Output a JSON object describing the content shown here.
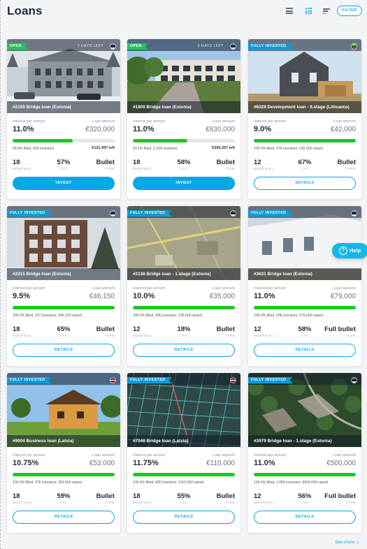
{
  "header": {
    "title": "Loans",
    "filter_label": "FILTER"
  },
  "colors": {
    "accent": "#0aa7e4",
    "progress": "#1cc925",
    "open_badge": "#22c55e",
    "invested_badge": "#0e9ad8"
  },
  "help": {
    "label": "Help",
    "icon_glyph": "?"
  },
  "see_more": {
    "label": "See more",
    "chevron": "›"
  },
  "common": {
    "interest_label": "Interest per annum",
    "amount_label": "Loan amount",
    "term_unit": "MONTH(S)",
    "ltv_unit": "LTV",
    "type_unit": "TYPE"
  },
  "cards": [
    {
      "badge": "OPEN",
      "days_left": "7 DAYS LEFT",
      "flag": "ee",
      "title": "#2155 Bridge loan (Estonia)",
      "interest": "11.0%",
      "amount": "€320,000",
      "filled": 0.589,
      "stats": "58.9% filled, 609 investors",
      "left": "€131,497 left",
      "term": "18",
      "ltv": "57%",
      "type": "Bullet",
      "button": "INVEST",
      "photo": "snow"
    },
    {
      "badge": "OPEN",
      "days_left": "6 DAYS LEFT",
      "flag": "ee",
      "title": "#1800 Bridge loan (Estonia)",
      "interest": "11.0%",
      "amount": "€630,000",
      "filled": 0.531,
      "stats": "53.1% filled, 1,159 investors",
      "left": "€295,267 left",
      "term": "18",
      "ltv": "58%",
      "type": "Bullet",
      "button": "INVEST",
      "photo": "street"
    },
    {
      "badge": "FULLY INVESTED",
      "days_left": "",
      "flag": "lt",
      "title": "#6328 Development loan - 9.stage (Lithuania)",
      "interest": "9.0%",
      "amount": "€42,000",
      "filled": 1.0,
      "stats": "100.0% filled, 375 investors, €42,000 raised",
      "left": "",
      "term": "12",
      "ltv": "67%",
      "type": "Bullet",
      "button": "DETAILS",
      "photo": "modern"
    },
    {
      "badge": "FULLY INVESTED",
      "days_left": "",
      "flag": "ee",
      "title": "#2215 Bridge loan (Estonia)",
      "interest": "9.5%",
      "amount": "€46,150",
      "filled": 1.0,
      "stats": "100.0% filled, 227 investors, €46,150 raised",
      "left": "",
      "term": "18",
      "ltv": "65%",
      "type": "Bullet",
      "button": "DETAILS",
      "photo": "apartment"
    },
    {
      "badge": "FULLY INVESTED",
      "days_left": "",
      "flag": "ee",
      "title": "#2136 Bridge loan - 1.stage (Estonia)",
      "interest": "10.0%",
      "amount": "€35,000",
      "filled": 1.0,
      "stats": "100.0% filled, 496 investors, €35,000 raised",
      "left": "",
      "term": "12",
      "ltv": "18%",
      "type": "Bullet",
      "button": "DETAILS",
      "photo": "aerial"
    },
    {
      "badge": "FULLY INVESTED",
      "days_left": "",
      "flag": "ee",
      "title": "#3631 Bridge loan (Estonia)",
      "interest": "11.0%",
      "amount": "€79,000",
      "filled": 1.0,
      "stats": "100.0% filled, 606 investors, €79,000 raised",
      "left": "",
      "term": "12",
      "ltv": "58%",
      "type": "Full bullet",
      "button": "DETAILS",
      "photo": "white"
    },
    {
      "badge": "FULLY INVESTED",
      "days_left": "",
      "flag": "lv",
      "title": "#9004 Business loan (Latvia)",
      "interest": "10.75%",
      "amount": "€53,000",
      "filled": 1.0,
      "stats": "100.0% filled, 376 investors, €53,000 raised",
      "left": "",
      "term": "18",
      "ltv": "59%",
      "type": "Bullet",
      "button": "DETAILS",
      "photo": "wood"
    },
    {
      "badge": "FULLY INVESTED",
      "days_left": "",
      "flag": "lv",
      "title": "#7048 Bridge loan (Latvia)",
      "interest": "11.75%",
      "amount": "€110,000",
      "filled": 1.0,
      "stats": "100.0% filled, 600 investors, €110,000 raised",
      "left": "",
      "term": "18",
      "ltv": "55%",
      "type": "Bullet",
      "button": "DETAILS",
      "photo": "map"
    },
    {
      "badge": "FULLY INVESTED",
      "days_left": "",
      "flag": "ee",
      "title": "#3979 Bridge loan - 1.stage (Estonia)",
      "interest": "11.0%",
      "amount": "€500,000",
      "filled": 1.0,
      "stats": "100.0% filled, 1,680 investors, €500,000 raised",
      "left": "",
      "term": "12",
      "ltv": "56%",
      "type": "Full bullet",
      "button": "DETAILS",
      "photo": "forest"
    }
  ]
}
